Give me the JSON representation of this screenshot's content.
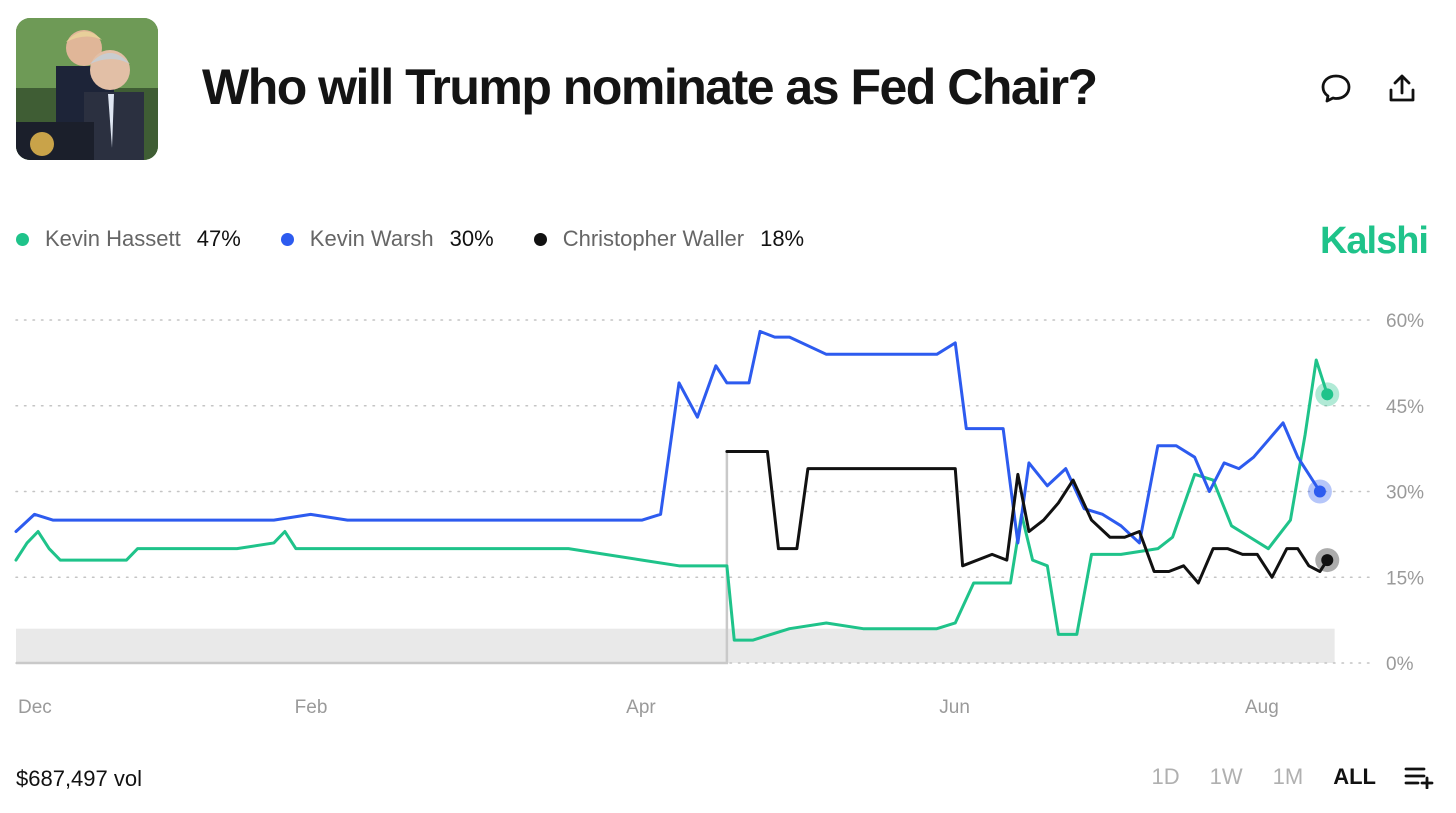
{
  "header": {
    "title": "Who will Trump nominate as Fed Chair?",
    "thumbnail_icon": "press-photo-thumbnail",
    "comment_icon": "comment-icon",
    "share_icon": "share-icon"
  },
  "legend": [
    {
      "name": "Kevin Hassett",
      "value": "47%",
      "color": "#1FC38A"
    },
    {
      "name": "Kevin Warsh",
      "value": "30%",
      "color": "#2D5BEF"
    },
    {
      "name": "Christopher Waller",
      "value": "18%",
      "color": "#111111"
    }
  ],
  "brand": {
    "name": "Kalshi",
    "color": "#1FC38A"
  },
  "footer": {
    "volume": "$687,497 vol",
    "ranges": [
      "1D",
      "1W",
      "1M",
      "ALL"
    ],
    "active_range": "ALL",
    "list_icon": "playlist-add-icon"
  },
  "chart_data": {
    "type": "line",
    "title": "Who will Trump nominate as Fed Chair?",
    "x_unit": "weeks since start (Dec)",
    "x_range": [
      0,
      36
    ],
    "x_ticks": [
      {
        "label": "Dec",
        "x": 0
      },
      {
        "label": "Feb",
        "x": 8
      },
      {
        "label": "Apr",
        "x": 17
      },
      {
        "label": "Jun",
        "x": 25.5
      },
      {
        "label": "Aug",
        "x": 33.8
      }
    ],
    "y_ticks": [
      "60%",
      "45%",
      "30%",
      "15%",
      "0%"
    ],
    "ylim": [
      0,
      60
    ],
    "y_tick_values": [
      60,
      45,
      30,
      15,
      0
    ],
    "grid": true,
    "series": [
      {
        "name": "Kevin Hassett",
        "color": "#1FC38A",
        "points": [
          [
            0,
            18
          ],
          [
            0.3,
            21
          ],
          [
            0.6,
            23
          ],
          [
            0.9,
            20
          ],
          [
            1.2,
            18
          ],
          [
            2,
            18
          ],
          [
            3,
            18
          ],
          [
            3.3,
            20
          ],
          [
            4,
            20
          ],
          [
            5,
            20
          ],
          [
            6,
            20
          ],
          [
            7,
            21
          ],
          [
            7.3,
            23
          ],
          [
            7.6,
            20
          ],
          [
            8,
            20
          ],
          [
            9,
            20
          ],
          [
            10,
            20
          ],
          [
            11,
            20
          ],
          [
            12,
            20
          ],
          [
            13,
            20
          ],
          [
            14,
            20
          ],
          [
            15,
            20
          ],
          [
            16,
            19
          ],
          [
            17,
            18
          ],
          [
            18,
            17
          ],
          [
            19,
            17
          ],
          [
            19.3,
            17
          ],
          [
            19.5,
            4
          ],
          [
            20,
            4
          ],
          [
            21,
            6
          ],
          [
            22,
            7
          ],
          [
            23,
            6
          ],
          [
            24,
            6
          ],
          [
            25,
            6
          ],
          [
            25.5,
            7
          ],
          [
            26,
            14
          ],
          [
            27,
            14
          ],
          [
            27.3,
            26
          ],
          [
            27.6,
            18
          ],
          [
            28,
            17
          ],
          [
            28.3,
            5
          ],
          [
            28.8,
            5
          ],
          [
            29.2,
            19
          ],
          [
            30,
            19
          ],
          [
            31,
            20
          ],
          [
            31.4,
            22
          ],
          [
            32,
            33
          ],
          [
            32.5,
            32
          ],
          [
            33,
            24
          ],
          [
            33.5,
            22
          ],
          [
            34,
            20
          ],
          [
            34.6,
            25
          ],
          [
            35,
            40
          ],
          [
            35.3,
            53
          ],
          [
            35.6,
            47
          ]
        ]
      },
      {
        "name": "Kevin Warsh",
        "color": "#2D5BEF",
        "points": [
          [
            0,
            23
          ],
          [
            0.5,
            26
          ],
          [
            1,
            25
          ],
          [
            2,
            25
          ],
          [
            3,
            25
          ],
          [
            4,
            25
          ],
          [
            5,
            25
          ],
          [
            6,
            25
          ],
          [
            7,
            25
          ],
          [
            8,
            26
          ],
          [
            9,
            25
          ],
          [
            10,
            25
          ],
          [
            11,
            25
          ],
          [
            12,
            25
          ],
          [
            13,
            25
          ],
          [
            14,
            25
          ],
          [
            15,
            25
          ],
          [
            16,
            25
          ],
          [
            17,
            25
          ],
          [
            17.5,
            26
          ],
          [
            18,
            49
          ],
          [
            18.5,
            43
          ],
          [
            19,
            52
          ],
          [
            19.3,
            49
          ],
          [
            19.6,
            49
          ],
          [
            19.9,
            49
          ],
          [
            20.2,
            58
          ],
          [
            20.6,
            57
          ],
          [
            21,
            57
          ],
          [
            22,
            54
          ],
          [
            23,
            54
          ],
          [
            24,
            54
          ],
          [
            25,
            54
          ],
          [
            25.5,
            56
          ],
          [
            25.8,
            41
          ],
          [
            26.4,
            41
          ],
          [
            26.8,
            41
          ],
          [
            27.2,
            21
          ],
          [
            27.5,
            35
          ],
          [
            28,
            31
          ],
          [
            28.5,
            34
          ],
          [
            29,
            27
          ],
          [
            29.5,
            26
          ],
          [
            30,
            24
          ],
          [
            30.5,
            21
          ],
          [
            31,
            38
          ],
          [
            31.5,
            38
          ],
          [
            32,
            36
          ],
          [
            32.4,
            30
          ],
          [
            32.8,
            35
          ],
          [
            33.2,
            34
          ],
          [
            33.6,
            36
          ],
          [
            34,
            39
          ],
          [
            34.4,
            42
          ],
          [
            34.8,
            36
          ],
          [
            35.1,
            33
          ],
          [
            35.4,
            30
          ]
        ]
      },
      {
        "name": "Christopher Waller",
        "color": "#111111",
        "points": [
          [
            19.3,
            37
          ],
          [
            20.4,
            37
          ],
          [
            20.7,
            20
          ],
          [
            21.2,
            20
          ],
          [
            21.5,
            34
          ],
          [
            23,
            34
          ],
          [
            24,
            34
          ],
          [
            25,
            34
          ],
          [
            25.5,
            34
          ],
          [
            25.7,
            17
          ],
          [
            26.5,
            19
          ],
          [
            26.9,
            18
          ],
          [
            27.2,
            33
          ],
          [
            27.5,
            23
          ],
          [
            27.9,
            25
          ],
          [
            28.3,
            28
          ],
          [
            28.7,
            32
          ],
          [
            29.2,
            25
          ],
          [
            29.7,
            22
          ],
          [
            30.1,
            22
          ],
          [
            30.5,
            23
          ],
          [
            30.9,
            16
          ],
          [
            31.3,
            16
          ],
          [
            31.7,
            17
          ],
          [
            32.1,
            14
          ],
          [
            32.5,
            20
          ],
          [
            32.9,
            20
          ],
          [
            33.3,
            19
          ],
          [
            33.7,
            19
          ],
          [
            34.1,
            15
          ],
          [
            34.5,
            20
          ],
          [
            34.8,
            20
          ],
          [
            35.1,
            17
          ],
          [
            35.4,
            16
          ],
          [
            35.6,
            18
          ]
        ]
      }
    ],
    "annotations": [
      {
        "type": "pre-launch-segment",
        "color": "#c9c9c9",
        "points": [
          [
            0,
            0
          ],
          [
            19.3,
            0
          ],
          [
            19.3,
            37
          ]
        ]
      },
      {
        "type": "shaded-band",
        "y_from": 0,
        "y_to": 6,
        "x_from": 0,
        "x_to": 35.8
      }
    ]
  }
}
